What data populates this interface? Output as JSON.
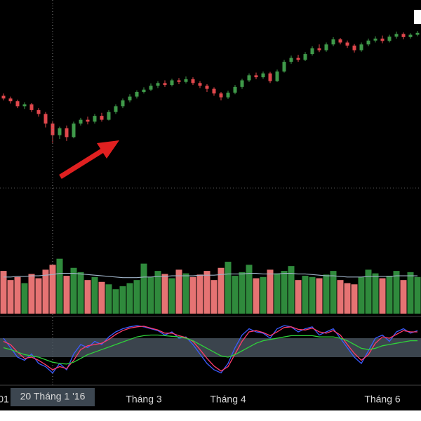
{
  "chart_data": [
    {
      "type": "candlestick",
      "categories": [
        "01",
        null,
        null,
        null,
        null,
        null,
        null,
        "20 Tháng 1 '16",
        null,
        null,
        null,
        null,
        null,
        null,
        null,
        null,
        null,
        null,
        null,
        null,
        "Tháng 3",
        null,
        null,
        null,
        null,
        null,
        null,
        null,
        null,
        null,
        null,
        null,
        "Tháng 4",
        null,
        null,
        null,
        null,
        null,
        null,
        null,
        null,
        null,
        null,
        null,
        null,
        null,
        null,
        null,
        null,
        null,
        null,
        null,
        null,
        null,
        "Tháng 6",
        null,
        null,
        null,
        null,
        null
      ],
      "crosshair": 7,
      "up_color": "#3f9a4a",
      "down_color": "#e0474c",
      "ylim": [
        1655,
        2200
      ],
      "open": [
        1952,
        1945,
        1938,
        1925,
        1930,
        1915,
        1905,
        1880,
        1850,
        1868,
        1845,
        1880,
        1890,
        1885,
        1900,
        1890,
        1910,
        1925,
        1940,
        1950,
        1962,
        1968,
        1978,
        1985,
        1980,
        1992,
        1988,
        1995,
        1985,
        1978,
        1970,
        1958,
        1948,
        1960,
        1975,
        1992,
        2005,
        2000,
        2010,
        1990,
        2015,
        2040,
        2050,
        2045,
        2060,
        2075,
        2070,
        2085,
        2098,
        2090,
        2082,
        2070,
        2085,
        2095,
        2100,
        2094,
        2105,
        2112,
        2104,
        2110
      ],
      "high": [
        1958,
        1950,
        1942,
        1935,
        1933,
        1920,
        1910,
        1885,
        1872,
        1875,
        1885,
        1895,
        1898,
        1905,
        1908,
        1915,
        1930,
        1945,
        1956,
        1966,
        1974,
        1984,
        1990,
        1992,
        1996,
        1998,
        2002,
        2000,
        1990,
        1982,
        1974,
        1962,
        1965,
        1980,
        1996,
        2010,
        2012,
        2015,
        2014,
        2020,
        2045,
        2056,
        2058,
        2065,
        2080,
        2085,
        2090,
        2104,
        2102,
        2095,
        2086,
        2090,
        2100,
        2106,
        2108,
        2110,
        2118,
        2116,
        2114,
        2120
      ],
      "low": [
        1940,
        1932,
        1920,
        1918,
        1910,
        1898,
        1870,
        1830,
        1840,
        1835,
        1842,
        1875,
        1878,
        1880,
        1885,
        1888,
        1905,
        1920,
        1935,
        1945,
        1958,
        1964,
        1972,
        1975,
        1976,
        1982,
        1984,
        1980,
        1972,
        1962,
        1952,
        1940,
        1944,
        1956,
        1970,
        1988,
        1995,
        1996,
        1985,
        1988,
        2012,
        2035,
        2040,
        2042,
        2056,
        2065,
        2066,
        2080,
        2085,
        2076,
        2064,
        2066,
        2080,
        2090,
        2088,
        2090,
        2100,
        2098,
        2100,
        2106
      ],
      "close": [
        1945,
        1938,
        1925,
        1930,
        1915,
        1905,
        1880,
        1850,
        1868,
        1845,
        1880,
        1890,
        1885,
        1900,
        1890,
        1910,
        1925,
        1940,
        1950,
        1962,
        1968,
        1978,
        1985,
        1980,
        1992,
        1988,
        1995,
        1985,
        1978,
        1970,
        1958,
        1948,
        1960,
        1975,
        1992,
        2005,
        2000,
        2010,
        1990,
        2015,
        2040,
        2050,
        2045,
        2060,
        2075,
        2070,
        2085,
        2098,
        2090,
        2082,
        2070,
        2085,
        2095,
        2100,
        2094,
        2105,
        2112,
        2104,
        2110,
        2115
      ]
    },
    {
      "type": "volume",
      "ylim": [
        0,
        100
      ],
      "values": [
        70,
        55,
        60,
        50,
        65,
        58,
        72,
        80,
        90,
        62,
        75,
        68,
        55,
        60,
        52,
        48,
        40,
        45,
        50,
        55,
        82,
        60,
        70,
        65,
        58,
        72,
        66,
        60,
        64,
        70,
        55,
        75,
        85,
        62,
        68,
        80,
        58,
        60,
        72,
        66,
        70,
        78,
        55,
        62,
        60,
        58,
        64,
        70,
        55,
        50,
        48,
        60,
        72,
        66,
        58,
        62,
        70,
        55,
        68,
        60
      ],
      "average": {
        "color": "#9fb3c8",
        "values": [
          60,
          60,
          61,
          61,
          62,
          62,
          63,
          64,
          66,
          66,
          66,
          65,
          64,
          63,
          62,
          61,
          60,
          59,
          59,
          59,
          60,
          60,
          61,
          61,
          62,
          62,
          62,
          62,
          63,
          63,
          63,
          64,
          65,
          65,
          65,
          66,
          66,
          65,
          65,
          65,
          66,
          66,
          65,
          65,
          64,
          63,
          62,
          62,
          61,
          60,
          60,
          60,
          61,
          61,
          61,
          61,
          62,
          62,
          62,
          62
        ]
      }
    },
    {
      "type": "line",
      "ylim": [
        0,
        100
      ],
      "band": [
        40,
        70
      ],
      "series": [
        {
          "color": "#3b5bff",
          "values": [
            70,
            55,
            40,
            35,
            45,
            30,
            25,
            15,
            30,
            20,
            45,
            60,
            55,
            65,
            60,
            72,
            80,
            85,
            88,
            90,
            88,
            85,
            82,
            75,
            80,
            70,
            72,
            60,
            45,
            30,
            20,
            15,
            30,
            55,
            75,
            85,
            80,
            78,
            70,
            85,
            90,
            88,
            80,
            85,
            88,
            75,
            80,
            85,
            70,
            55,
            40,
            30,
            50,
            70,
            75,
            65,
            80,
            85,
            78,
            82
          ]
        },
        {
          "color": "#ff3b6b",
          "values": [
            65,
            60,
            48,
            38,
            40,
            35,
            28,
            20,
            25,
            22,
            35,
            52,
            58,
            60,
            62,
            68,
            76,
            82,
            86,
            88,
            89,
            86,
            83,
            78,
            78,
            74,
            71,
            65,
            52,
            38,
            26,
            18,
            25,
            45,
            65,
            80,
            82,
            79,
            74,
            80,
            87,
            88,
            84,
            83,
            86,
            80,
            78,
            82,
            75,
            60,
            46,
            35,
            44,
            62,
            72,
            70,
            76,
            82,
            80,
            80
          ]
        },
        {
          "color": "#2fd13a",
          "values": [
            55,
            52,
            48,
            44,
            42,
            40,
            36,
            32,
            30,
            29,
            32,
            38,
            44,
            48,
            52,
            56,
            60,
            64,
            68,
            72,
            74,
            75,
            75,
            74,
            73,
            72,
            70,
            66,
            60,
            54,
            48,
            42,
            40,
            44,
            50,
            56,
            62,
            66,
            68,
            70,
            72,
            74,
            74,
            74,
            74,
            72,
            72,
            72,
            70,
            66,
            60,
            54,
            52,
            54,
            58,
            60,
            62,
            64,
            66,
            66
          ]
        }
      ]
    }
  ]
}
